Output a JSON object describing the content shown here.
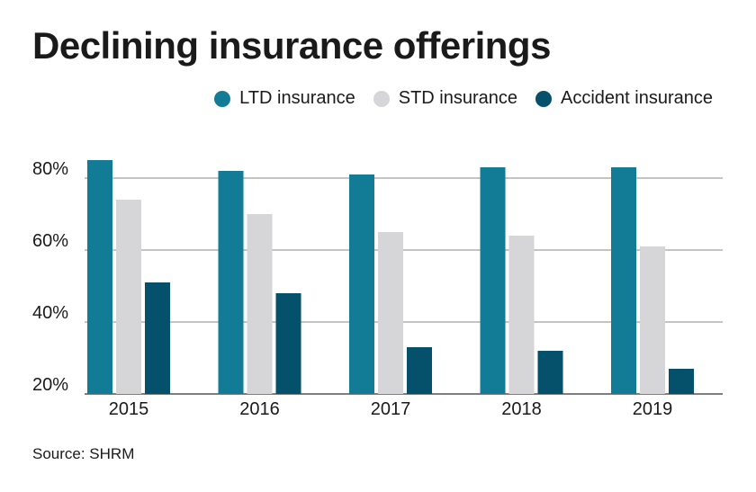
{
  "title": "Declining insurance offerings",
  "source": "Source: SHRM",
  "legend": [
    {
      "label": "LTD insurance",
      "color": "#127c97"
    },
    {
      "label": "STD insurance",
      "color": "#d6d5d7"
    },
    {
      "label": "Accident insurance",
      "color": "#05506b"
    }
  ],
  "chart_data": {
    "type": "bar",
    "title": "Declining insurance offerings",
    "xlabel": "",
    "ylabel": "",
    "categories": [
      "2015",
      "2016",
      "2017",
      "2018",
      "2019"
    ],
    "series": [
      {
        "name": "LTD insurance",
        "color": "#127c97",
        "values": [
          85,
          82,
          81,
          83,
          83
        ]
      },
      {
        "name": "STD insurance",
        "color": "#d6d5d7",
        "values": [
          74,
          70,
          65,
          64,
          61
        ]
      },
      {
        "name": "Accident insurance",
        "color": "#05506b",
        "values": [
          51,
          48,
          33,
          32,
          27
        ]
      }
    ],
    "yticks": [
      {
        "value": 20,
        "label": "20%"
      },
      {
        "value": 40,
        "label": "40%"
      },
      {
        "value": 60,
        "label": "60%"
      },
      {
        "value": 80,
        "label": "80%"
      }
    ],
    "ylim": [
      20,
      85
    ],
    "grid": true,
    "legend_position": "top-right"
  }
}
